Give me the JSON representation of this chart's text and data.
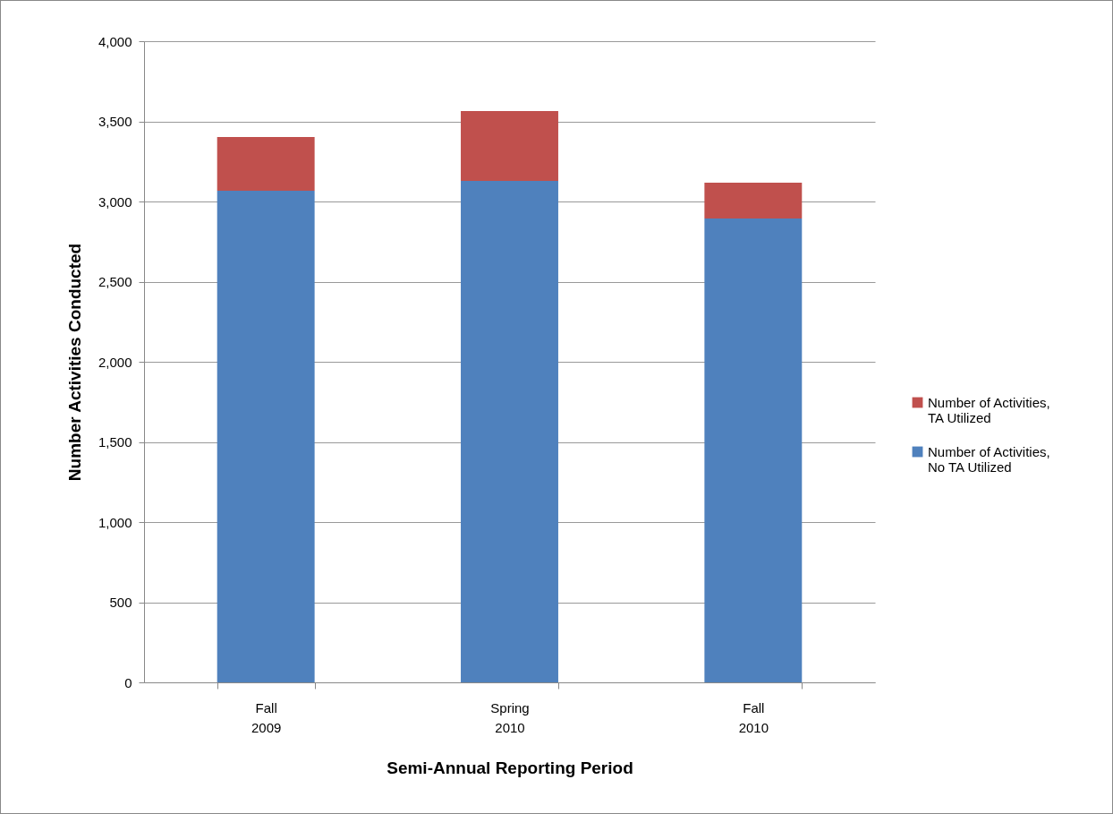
{
  "chart_data": {
    "type": "bar",
    "stacked": true,
    "xlabel": "Semi-Annual Reporting Period",
    "ylabel": "Number Activities Conducted",
    "categories": [
      "Fall 2009",
      "Spring 2010",
      "Fall 2010"
    ],
    "series": [
      {
        "name": "Number of Activities, No TA Utilized",
        "color": "#4f81bd",
        "values": [
          3067,
          3128,
          2894
        ]
      },
      {
        "name": "Number of Activities, TA Utilized",
        "color": "#c0504d",
        "values": [
          335,
          436,
          223
        ]
      }
    ],
    "ylim": [
      0,
      4000
    ],
    "yticks": [
      0,
      500,
      {
        "value": 1000,
        "label": "1,000"
      },
      {
        "value": 1500,
        "label": "1,500"
      },
      {
        "value": 2000,
        "label": "2,000"
      },
      {
        "value": 2500,
        "label": "2,500"
      },
      {
        "value": 3000,
        "label": "3,000"
      },
      {
        "value": 3500,
        "label": "3,500"
      },
      {
        "value": 4000,
        "label": "4,000"
      }
    ],
    "grid": "y",
    "legend": "right"
  }
}
